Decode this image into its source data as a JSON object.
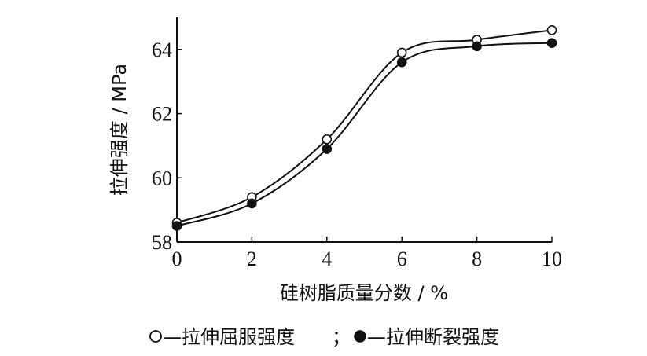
{
  "chart_data": {
    "type": "line",
    "title": "",
    "xlabel": "硅树脂质量分数 / %",
    "ylabel": "拉伸强度 / MPa",
    "xlim": [
      0,
      10
    ],
    "ylim": [
      58,
      65
    ],
    "xticks": [
      0,
      2,
      4,
      6,
      8,
      10
    ],
    "yticks": [
      58,
      60,
      62,
      64
    ],
    "grid": false,
    "legend_position": "bottom",
    "series": [
      {
        "name": "拉伸屈服强度",
        "marker": "open-circle",
        "x": [
          0,
          2,
          4,
          6,
          8,
          10
        ],
        "y": [
          58.6,
          59.4,
          61.2,
          63.9,
          64.3,
          64.6
        ]
      },
      {
        "name": "拉伸断裂强度",
        "marker": "filled-circle",
        "x": [
          0,
          2,
          4,
          6,
          8,
          10
        ],
        "y": [
          58.5,
          59.2,
          60.9,
          63.6,
          64.1,
          64.2
        ]
      }
    ],
    "legend": {
      "open_symbol": "○",
      "filled_symbol": "●",
      "dash": "—",
      "separator": "；"
    }
  }
}
